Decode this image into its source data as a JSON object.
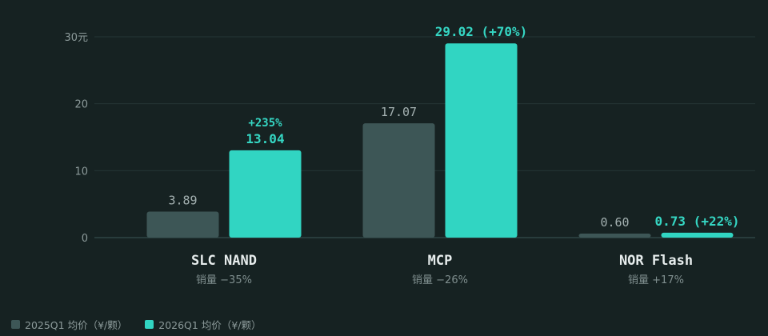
{
  "chart_data": {
    "type": "bar",
    "categories": [
      "SLC NAND",
      "MCP",
      "NOR Flash"
    ],
    "category_subtitles": [
      "销量 −35%",
      "销量 −26%",
      "销量 +17%"
    ],
    "series": [
      {
        "name": "2025Q1 均价（¥/颗）",
        "color": "#3d5656",
        "values": [
          3.89,
          17.07,
          0.6
        ],
        "labels": [
          "3.89",
          "17.07",
          "0.60"
        ]
      },
      {
        "name": "2026Q1 均价（¥/颗）",
        "color": "#31d5c2",
        "values": [
          13.04,
          29.02,
          0.73
        ],
        "labels": [
          "13.04",
          "29.02 (+70%)",
          "0.73 (+22%)"
        ],
        "extra_labels": [
          "+235%",
          "",
          ""
        ]
      }
    ],
    "y_ticks": [
      "0",
      "10",
      "20",
      "30元"
    ],
    "ylim": [
      0,
      30
    ],
    "grid": true,
    "legend_position": "bottom-left"
  }
}
